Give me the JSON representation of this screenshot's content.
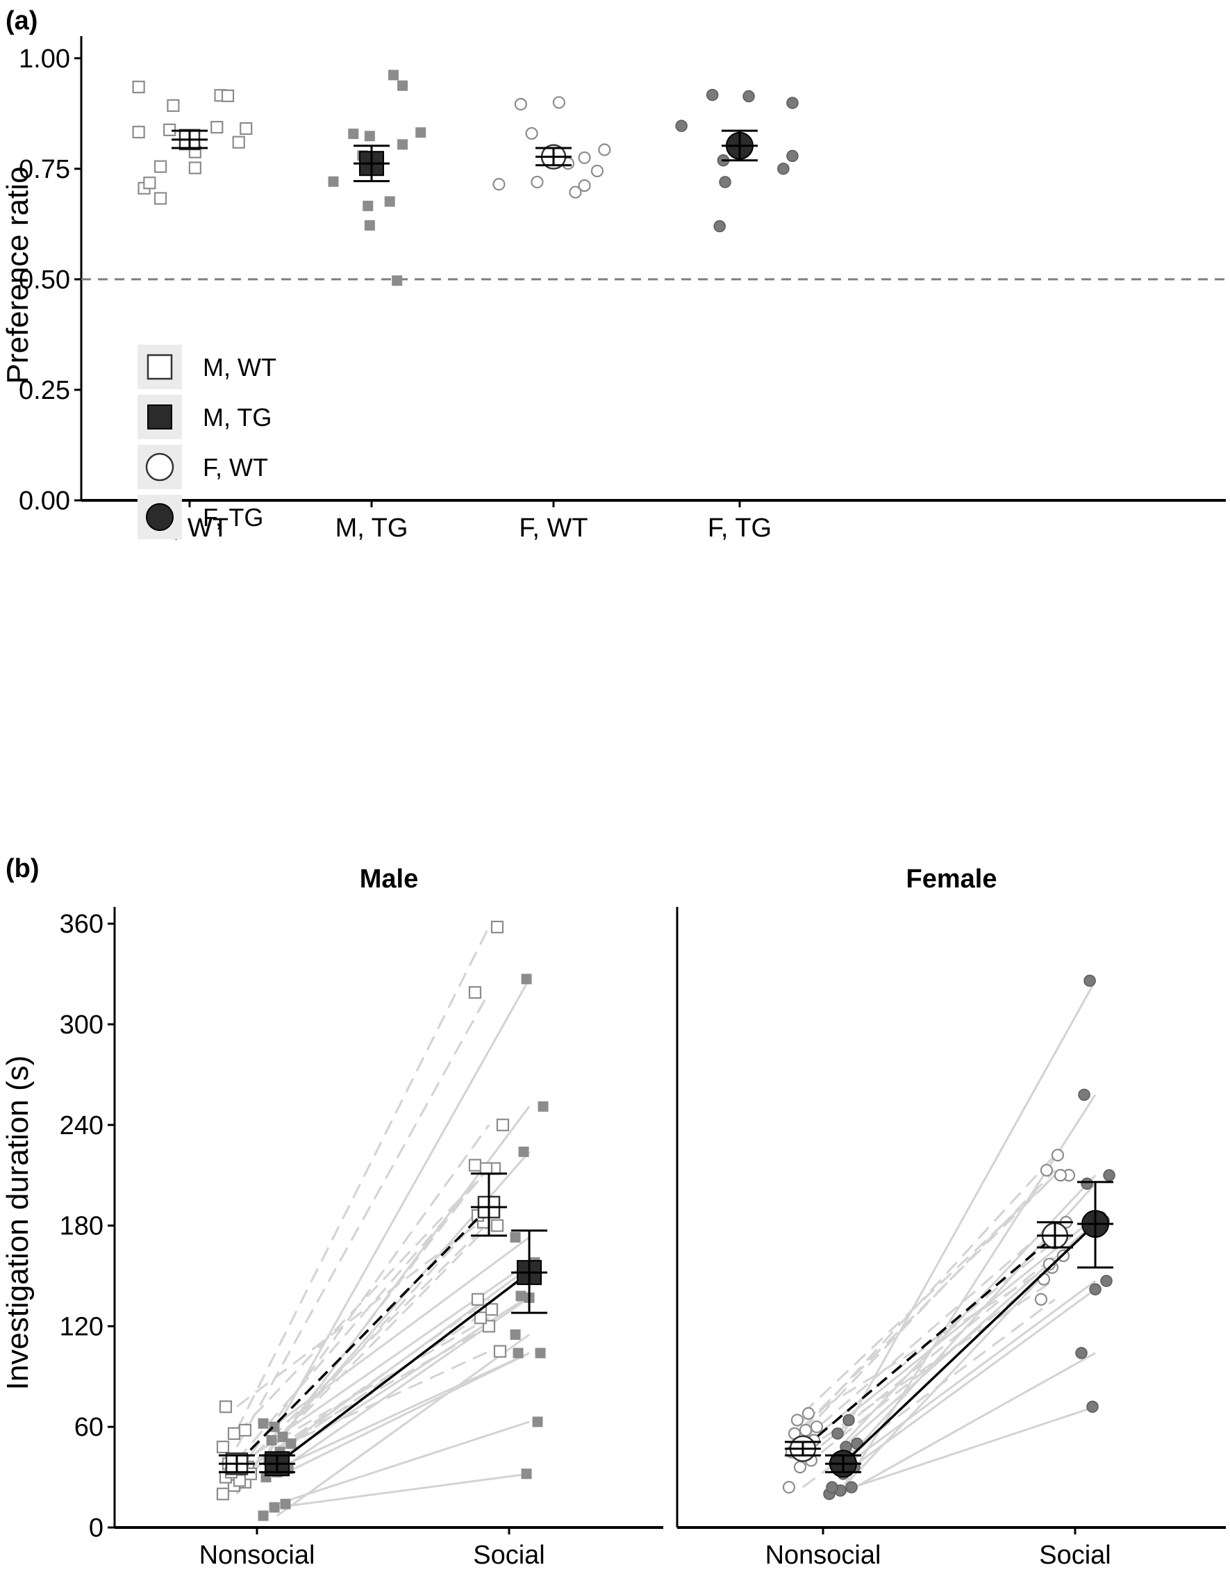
{
  "figure": {
    "panel_a_label": "(a)",
    "panel_b_label": "(b)"
  },
  "colors": {
    "wt_fill": "#ffffff",
    "wt_stroke": "#8c8c8c",
    "mtg_point": "#8c8c8c",
    "ftg_point": "#7a7a7a",
    "mean_tg": "#2b2b2b",
    "line_light": "#d3d3d3",
    "legend_bg": "#ebebeb",
    "refline": "#7f7f7f"
  },
  "chart_data": [
    {
      "type": "scatter",
      "panel": "(a)",
      "title": "",
      "xlabel": "",
      "ylabel": "Preference ratio",
      "ylim": [
        0,
        1.05
      ],
      "yticks": [
        "0.00",
        "0.25",
        "0.50",
        "0.75",
        "1.00"
      ],
      "categories": [
        "M, WT",
        "M, TG",
        "F, WT",
        "F, TG"
      ],
      "reference_line": 0.5,
      "legend": {
        "placement": "bottom-left",
        "entries": [
          "M, WT",
          "M, TG",
          "F, WT",
          "F, TG"
        ]
      },
      "series": [
        {
          "group": "M, WT",
          "shape": "square",
          "fill": "open",
          "mean": 0.816,
          "se": [
            0.797,
            0.836
          ],
          "points": [
            {
              "x": -0.28,
              "y": 0.935
            },
            {
              "x": -0.28,
              "y": 0.833
            },
            {
              "x": -0.25,
              "y": 0.706
            },
            {
              "x": -0.22,
              "y": 0.718
            },
            {
              "x": -0.16,
              "y": 0.683
            },
            {
              "x": -0.16,
              "y": 0.755
            },
            {
              "x": -0.11,
              "y": 0.838
            },
            {
              "x": -0.09,
              "y": 0.893
            },
            {
              "x": 0.03,
              "y": 0.788
            },
            {
              "x": 0.03,
              "y": 0.752
            },
            {
              "x": 0.15,
              "y": 0.844
            },
            {
              "x": 0.17,
              "y": 0.916
            },
            {
              "x": 0.21,
              "y": 0.915
            },
            {
              "x": 0.27,
              "y": 0.81
            },
            {
              "x": 0.31,
              "y": 0.841
            }
          ]
        },
        {
          "group": "M, TG",
          "shape": "square",
          "fill": "solid",
          "mean": 0.762,
          "se": [
            0.722,
            0.802
          ],
          "points": [
            {
              "x": -0.21,
              "y": 0.721
            },
            {
              "x": -0.1,
              "y": 0.829
            },
            {
              "x": -0.05,
              "y": 0.78
            },
            {
              "x": -0.02,
              "y": 0.666
            },
            {
              "x": -0.01,
              "y": 0.622
            },
            {
              "x": -0.01,
              "y": 0.824
            },
            {
              "x": 0.1,
              "y": 0.676
            },
            {
              "x": 0.12,
              "y": 0.962
            },
            {
              "x": 0.14,
              "y": 0.497
            },
            {
              "x": 0.17,
              "y": 0.938
            },
            {
              "x": 0.17,
              "y": 0.805
            },
            {
              "x": 0.27,
              "y": 0.832
            }
          ]
        },
        {
          "group": "F, WT",
          "shape": "circle",
          "fill": "open",
          "mean": 0.777,
          "se": [
            0.758,
            0.797
          ],
          "points": [
            {
              "x": -0.3,
              "y": 0.715
            },
            {
              "x": -0.18,
              "y": 0.896
            },
            {
              "x": -0.12,
              "y": 0.83
            },
            {
              "x": -0.09,
              "y": 0.72
            },
            {
              "x": 0.03,
              "y": 0.9
            },
            {
              "x": 0.08,
              "y": 0.762
            },
            {
              "x": 0.12,
              "y": 0.697
            },
            {
              "x": 0.17,
              "y": 0.712
            },
            {
              "x": 0.17,
              "y": 0.775
            },
            {
              "x": 0.24,
              "y": 0.745
            },
            {
              "x": 0.28,
              "y": 0.793
            }
          ]
        },
        {
          "group": "F, TG",
          "shape": "circle",
          "fill": "solid",
          "mean": 0.802,
          "se": [
            0.769,
            0.836
          ],
          "points": [
            {
              "x": -0.32,
              "y": 0.847
            },
            {
              "x": -0.15,
              "y": 0.917
            },
            {
              "x": -0.11,
              "y": 0.62
            },
            {
              "x": -0.09,
              "y": 0.769
            },
            {
              "x": -0.08,
              "y": 0.72
            },
            {
              "x": 0.05,
              "y": 0.914
            },
            {
              "x": 0.24,
              "y": 0.75
            },
            {
              "x": 0.29,
              "y": 0.899
            },
            {
              "x": 0.29,
              "y": 0.779
            }
          ]
        }
      ]
    },
    {
      "type": "line",
      "panel": "(b)",
      "title": "",
      "xlabel": "",
      "ylabel": "Investigation duration (s)",
      "ylim": [
        0,
        370
      ],
      "yticks": [
        "0",
        "60",
        "120",
        "180",
        "240",
        "300",
        "360"
      ],
      "categories": [
        "Nonsocial",
        "Social"
      ],
      "facets": [
        {
          "title": "Male",
          "groups": [
            {
              "group": "M, WT",
              "shape": "square",
              "fill": "open",
              "linetype": "dashed",
              "dodge": -0.08,
              "mean": [
                38,
                191
              ],
              "se_nonsocial": [
                33,
                43
              ],
              "se_social": [
                174,
                211
              ],
              "pairs": [
                [
                  20,
                  216
                ],
                [
                  25,
                  191
                ],
                [
                  27,
                  180
                ],
                [
                  30,
                  136
                ],
                [
                  34,
                  120
                ],
                [
                  36,
                  105
                ],
                [
                  38,
                  125
                ],
                [
                  28,
                  130
                ],
                [
                  32,
                  240
                ],
                [
                  33,
                  182
                ],
                [
                  40,
                  214
                ],
                [
                  48,
                  319
                ],
                [
                  56,
                  214
                ],
                [
                  58,
                  358
                ],
                [
                  72,
                  186
                ]
              ]
            },
            {
              "group": "M, TG",
              "shape": "square",
              "fill": "solid",
              "linetype": "solid",
              "dodge": 0.08,
              "mean": [
                38,
                152
              ],
              "se_nonsocial": [
                33,
                43
              ],
              "se_social": [
                128,
                177
              ],
              "pairs": [
                [
                  7,
                  115
                ],
                [
                  12,
                  32
                ],
                [
                  14,
                  63
                ],
                [
                  30,
                  104
                ],
                [
                  33,
                  137
                ],
                [
                  35,
                  104
                ],
                [
                  40,
                  138
                ],
                [
                  45,
                  155
                ],
                [
                  50,
                  251
                ],
                [
                  52,
                  224
                ],
                [
                  54,
                  158
                ],
                [
                  62,
                  173
                ],
                [
                  60,
                  327
                ]
              ]
            }
          ]
        },
        {
          "title": "Female",
          "groups": [
            {
              "group": "F, WT",
              "shape": "circle",
              "fill": "open",
              "linetype": "dashed",
              "dodge": -0.08,
              "mean": [
                47,
                174
              ],
              "se_nonsocial": [
                43,
                51
              ],
              "se_social": [
                167,
                182
              ],
              "pairs": [
                [
                  24,
                  136
                ],
                [
                  36,
                  155
                ],
                [
                  40,
                  162
                ],
                [
                  45,
                  148
                ],
                [
                  48,
                  171
                ],
                [
                  52,
                  182
                ],
                [
                  56,
                  213
                ],
                [
                  58,
                  222
                ],
                [
                  60,
                  210
                ],
                [
                  64,
                  157
                ],
                [
                  68,
                  210
                ]
              ]
            },
            {
              "group": "F, TG",
              "shape": "circle",
              "fill": "solid",
              "linetype": "solid",
              "dodge": 0.08,
              "mean": [
                38,
                181
              ],
              "se_nonsocial": [
                33,
                43
              ],
              "se_social": [
                155,
                206
              ],
              "pairs": [
                [
                  20,
                  104
                ],
                [
                  22,
                  72
                ],
                [
                  24,
                  183
                ],
                [
                  24,
                  258
                ],
                [
                  32,
                  142
                ],
                [
                  36,
                  147
                ],
                [
                  38,
                  205
                ],
                [
                  48,
                  182
                ],
                [
                  50,
                  210
                ],
                [
                  56,
                  326
                ],
                [
                  64,
                  185
                ]
              ]
            }
          ]
        }
      ]
    }
  ]
}
